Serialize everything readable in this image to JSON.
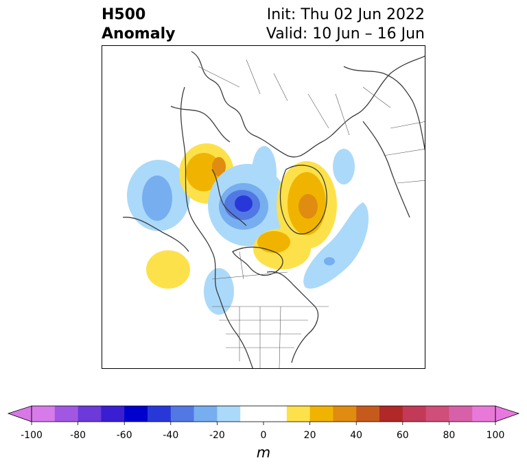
{
  "header": {
    "variable_line1": "H500",
    "variable_line2": "Anomaly",
    "init_text": "Init: Thu 02 Jun 2022",
    "valid_text": "Valid: 10 Jun – 16 Jun"
  },
  "map": {
    "region": "North America / Arctic (polar stereographic)",
    "anomalies": [
      {
        "region": "Gulf of Alaska",
        "sign": "negative",
        "peak_m": -40
      },
      {
        "region": "Alaska / Bering",
        "sign": "positive",
        "peak_m": 30
      },
      {
        "region": "Beaufort Sea",
        "sign": "negative",
        "peak_m": -60
      },
      {
        "region": "Greenland",
        "sign": "positive",
        "peak_m": 40
      },
      {
        "region": "Hudson Bay",
        "sign": "positive",
        "peak_m": 20
      },
      {
        "region": "North Atlantic",
        "sign": "negative",
        "peak_m": -40
      },
      {
        "region": "NE Pacific",
        "sign": "positive",
        "peak_m": 20
      },
      {
        "region": "Western US",
        "sign": "negative",
        "peak_m": -20
      }
    ]
  },
  "colorbar": {
    "unit": "m",
    "min": -100,
    "max": 100,
    "step": 10,
    "tick_labels": [
      "-100",
      "-80",
      "-60",
      "-40",
      "-20",
      "0",
      "20",
      "40",
      "60",
      "80",
      "100"
    ],
    "colors": [
      "#d77bea",
      "#a257e3",
      "#6b3ad9",
      "#3a1ed1",
      "#0000cc",
      "#2838d8",
      "#5278e4",
      "#76aef0",
      "#abd9f9",
      "#ffffff",
      "#ffffff",
      "#fde14a",
      "#f0b400",
      "#df8c10",
      "#c65a1c",
      "#b02828",
      "#c23a58",
      "#cf4e7a",
      "#d860a8",
      "#e879d9"
    ],
    "extend_min_color": "#d877e8",
    "extend_max_color": "#ea77e0"
  }
}
